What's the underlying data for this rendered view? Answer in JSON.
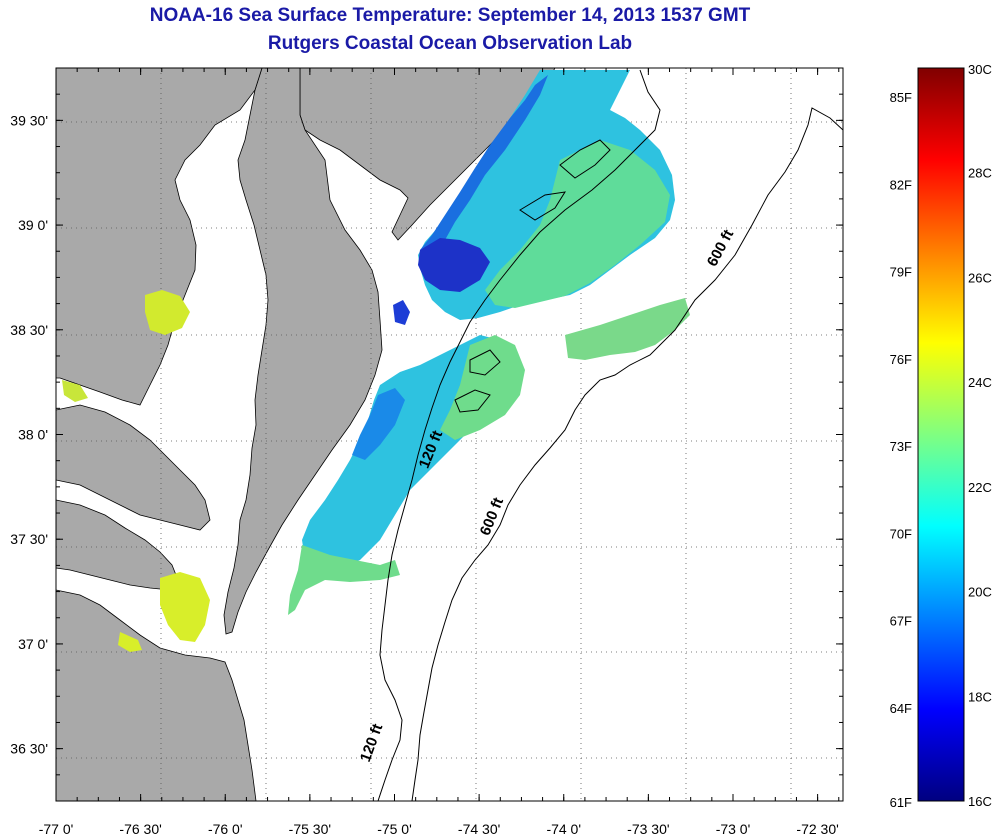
{
  "header": {
    "title": "NOAA-16 Sea Surface Temperature:  September 14, 2013 1537 GMT",
    "subtitle": "Rutgers Coastal Ocean Observation Lab"
  },
  "map": {
    "lon_range": [
      -77.0,
      -72.35
    ],
    "lat_range": [
      36.25,
      39.75
    ],
    "lon_ticks": [
      {
        "value": -77.0,
        "label": "-77 0'"
      },
      {
        "value": -76.5,
        "label": "-76 30'"
      },
      {
        "value": -76.0,
        "label": "-76 0'"
      },
      {
        "value": -75.5,
        "label": "-75 30'"
      },
      {
        "value": -75.0,
        "label": "-75 0'"
      },
      {
        "value": -74.5,
        "label": "-74 30'"
      },
      {
        "value": -74.0,
        "label": "-74 0'"
      },
      {
        "value": -73.5,
        "label": "-73 30'"
      },
      {
        "value": -73.0,
        "label": "-73 0'"
      },
      {
        "value": -72.5,
        "label": "-72 30'"
      }
    ],
    "lat_ticks": [
      {
        "value": 39.5,
        "label": "39 30'"
      },
      {
        "value": 39.0,
        "label": "39 0'"
      },
      {
        "value": 38.5,
        "label": "38 30'"
      },
      {
        "value": 38.0,
        "label": "38 0'"
      },
      {
        "value": 37.5,
        "label": "37 30'"
      },
      {
        "value": 37.0,
        "label": "37 0'"
      },
      {
        "value": 36.5,
        "label": "36 30'"
      }
    ],
    "grid": "dotted",
    "contour_labels": [
      {
        "text": "600 ft",
        "lon": -73.05,
        "lat": 38.88,
        "rotate": -62
      },
      {
        "text": "120 ft",
        "lon": -74.76,
        "lat": 37.92,
        "rotate": -68
      },
      {
        "text": "600 ft",
        "lon": -74.4,
        "lat": 37.6,
        "rotate": -68
      },
      {
        "text": "120 ft",
        "lon": -75.11,
        "lat": 36.52,
        "rotate": -70
      }
    ]
  },
  "colorbar": {
    "range_c": [
      16,
      30
    ],
    "celsius_labels": [
      {
        "value": 30,
        "label": "30C"
      },
      {
        "value": 28,
        "label": "28C"
      },
      {
        "value": 26,
        "label": "26C"
      },
      {
        "value": 24,
        "label": "24C"
      },
      {
        "value": 22,
        "label": "22C"
      },
      {
        "value": 20,
        "label": "20C"
      },
      {
        "value": 18,
        "label": "18C"
      },
      {
        "value": 16,
        "label": "16C"
      }
    ],
    "fahrenheit_labels": [
      {
        "value": 85,
        "label": "85F"
      },
      {
        "value": 82,
        "label": "82F"
      },
      {
        "value": 79,
        "label": "79F"
      },
      {
        "value": 76,
        "label": "76F"
      },
      {
        "value": 73,
        "label": "73F"
      },
      {
        "value": 70,
        "label": "70F"
      },
      {
        "value": 67,
        "label": "67F"
      },
      {
        "value": 64,
        "label": "64F"
      },
      {
        "value": 61,
        "label": "61F"
      }
    ],
    "colors": [
      "#000080",
      "#0000ff",
      "#0080ff",
      "#00ffff",
      "#80ff80",
      "#ffff00",
      "#ff8000",
      "#ff0000",
      "#800000"
    ]
  },
  "colors": {
    "land": "#a9a9a9",
    "title": "#1a1aa6",
    "cold": "#1d3dd6",
    "cool": "#1fb0e8",
    "mid": "#34d6c4",
    "warm": "#7ee27a",
    "yellow": "#d8ee2a"
  }
}
